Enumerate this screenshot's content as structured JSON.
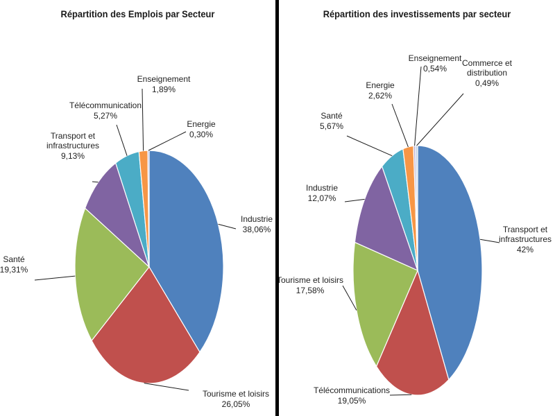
{
  "chart_data": [
    {
      "type": "pie",
      "title": "Répartition des Emplois par Secteur",
      "slices": [
        {
          "label": "Industrie",
          "value": 38.06,
          "value_label": "38,06%",
          "color": "#4F81BD"
        },
        {
          "label": "Tourisme et loisirs",
          "value": 26.05,
          "value_label": "26,05%",
          "color": "#C0504D"
        },
        {
          "label": "Santé",
          "value": 19.31,
          "value_label": "19,31%",
          "color": "#9BBB59"
        },
        {
          "label": "Transport et infrastructures",
          "value": 9.13,
          "value_label": "9,13%",
          "color": "#8064A2"
        },
        {
          "label": "Télécommunication",
          "value": 5.27,
          "value_label": "5,27%",
          "color": "#4BACC6"
        },
        {
          "label": "Enseignement",
          "value": 1.89,
          "value_label": "1,89%",
          "color": "#F79646"
        },
        {
          "label": "Energie",
          "value": 0.3,
          "value_label": "0,30%",
          "color": "#A6A6D8"
        }
      ]
    },
    {
      "type": "pie",
      "title": "Répartition des investissements par secteur",
      "slices": [
        {
          "label": "Transport et infrastructures",
          "value": 42,
          "value_label": "42%",
          "color": "#4F81BD"
        },
        {
          "label": "Télécommunications",
          "value": 19.05,
          "value_label": "19,05%",
          "color": "#C0504D"
        },
        {
          "label": "Tourisme et loisirs",
          "value": 17.58,
          "value_label": "17,58%",
          "color": "#9BBB59"
        },
        {
          "label": "Industrie",
          "value": 12.07,
          "value_label": "12,07%",
          "color": "#8064A2"
        },
        {
          "label": "Santé",
          "value": 5.67,
          "value_label": "5,67%",
          "color": "#4BACC6"
        },
        {
          "label": "Energie",
          "value": 2.62,
          "value_label": "2,62%",
          "color": "#F79646"
        },
        {
          "label": "Enseignement",
          "value": 0.54,
          "value_label": "0,54%",
          "color": "#C0B8D8"
        },
        {
          "label": "Commerce et distribution",
          "value": 0.49,
          "value_label": "0,49%",
          "color": "#B9CDE5"
        }
      ]
    }
  ]
}
